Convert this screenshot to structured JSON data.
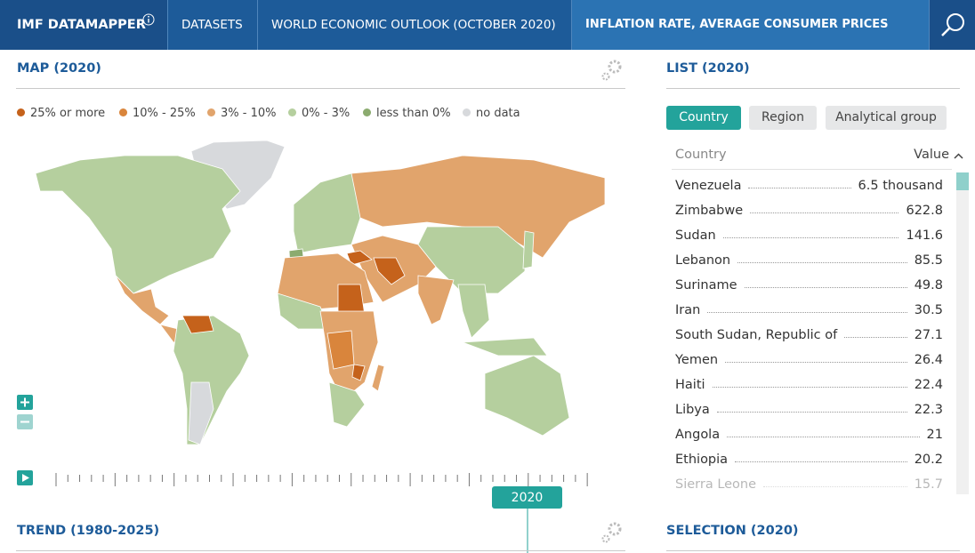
{
  "header": {
    "brand": "IMF DATAMAPPER",
    "nav": [
      "DATASETS",
      "WORLD ECONOMIC OUTLOOK (OCTOBER 2020)",
      "INFLATION RATE, AVERAGE CONSUMER PRICES"
    ]
  },
  "map": {
    "title": "MAP (2020)",
    "legend": [
      {
        "label": "25% or more",
        "color": "#c5621b"
      },
      {
        "label": "10% - 25%",
        "color": "#d9853c"
      },
      {
        "label": "3% - 10%",
        "color": "#e1a46c"
      },
      {
        "label": "0% - 3%",
        "color": "#b5cf9e"
      },
      {
        "label": "less than 0%",
        "color": "#8bab6f"
      },
      {
        "label": "no data",
        "color": "#d7d9dc"
      }
    ],
    "timeline_year": "2020"
  },
  "list": {
    "title": "LIST (2020)",
    "tabs": [
      "Country",
      "Region",
      "Analytical group"
    ],
    "columns": [
      "Country",
      "Value"
    ],
    "rows": [
      {
        "country": "Venezuela",
        "value": "6.5 thousand"
      },
      {
        "country": "Zimbabwe",
        "value": 622.8
      },
      {
        "country": "Sudan",
        "value": 141.6
      },
      {
        "country": "Lebanon",
        "value": 85.5
      },
      {
        "country": "Suriname",
        "value": 49.8
      },
      {
        "country": "Iran",
        "value": 30.5
      },
      {
        "country": "South Sudan, Republic of",
        "value": 27.1
      },
      {
        "country": "Yemen",
        "value": 26.4
      },
      {
        "country": "Haiti",
        "value": 22.4
      },
      {
        "country": "Libya",
        "value": 22.3
      },
      {
        "country": "Angola",
        "value": 21
      },
      {
        "country": "Ethiopia",
        "value": 20.2
      },
      {
        "country": "Sierra Leone",
        "value": 15.7
      }
    ]
  },
  "trend": {
    "title": "TREND (1980-2025)"
  },
  "selection": {
    "title": "SELECTION (2020)"
  }
}
